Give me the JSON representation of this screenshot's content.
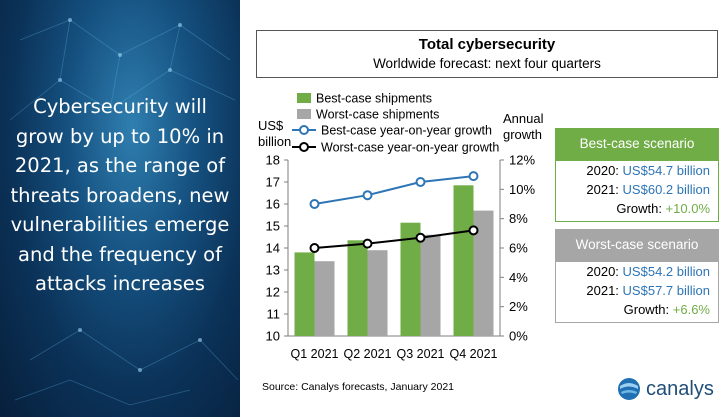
{
  "left_panel": {
    "text": "Cybersecurity will grow by up to 10% in 2021, as the range of threats broadens, new vulnerabilities emerge and the frequency of attacks increases"
  },
  "chart_data": {
    "type": "bar",
    "title": "Total cybersecurity",
    "subtitle": "Worldwide forecast: next four quarters",
    "categories": [
      "Q1 2021",
      "Q2 2021",
      "Q3 2021",
      "Q4 2021"
    ],
    "y_left_label": [
      "US$",
      "billion"
    ],
    "y_left_ticks": [
      "10",
      "11",
      "12",
      "13",
      "14",
      "15",
      "16",
      "17",
      "18"
    ],
    "ylim_left": [
      10,
      18
    ],
    "y_right_label": [
      "Annual",
      "growth"
    ],
    "y_right_ticks": [
      "0%",
      "2%",
      "4%",
      "6%",
      "8%",
      "10%",
      "12%"
    ],
    "ylim_right": [
      0,
      12
    ],
    "series": [
      {
        "name": "Best-case shipments",
        "kind": "bar",
        "axis": "left",
        "color": "#70ad47",
        "values": [
          13.8,
          14.35,
          15.15,
          16.85
        ]
      },
      {
        "name": "Worst-case shipments",
        "kind": "bar",
        "axis": "left",
        "color": "#a6a6a6",
        "values": [
          13.4,
          13.9,
          14.6,
          15.7
        ]
      },
      {
        "name": "Best-case year-on-year growth",
        "kind": "line",
        "axis": "right",
        "color": "#2e75b6",
        "values": [
          9.0,
          9.6,
          10.5,
          10.9
        ]
      },
      {
        "name": "Worst-case year-on-year growth",
        "kind": "line",
        "axis": "right",
        "color": "#000000",
        "values": [
          6.0,
          6.3,
          6.7,
          7.2
        ]
      }
    ],
    "grid": false
  },
  "best_case": {
    "header": "Best-case scenario",
    "header_color": "#70ad47",
    "lines": [
      {
        "label": "2020: ",
        "value": "US$54.7 billion"
      },
      {
        "label": "2021: ",
        "value": "US$60.2 billion"
      },
      {
        "label": "Growth: ",
        "value": "+10.0%"
      }
    ]
  },
  "worst_case": {
    "header": "Worst-case scenario",
    "header_color": "#a6a6a6",
    "lines": [
      {
        "label": "2020: ",
        "value": "US$54.2 billion"
      },
      {
        "label": "2021: ",
        "value": "US$57.7 billion"
      },
      {
        "label": "Growth: ",
        "value": "+6.6%"
      }
    ]
  },
  "source": "Source: Canalys forecasts, January 2021",
  "logo": {
    "text": "canalys",
    "icon": "canalys-globe-icon"
  }
}
